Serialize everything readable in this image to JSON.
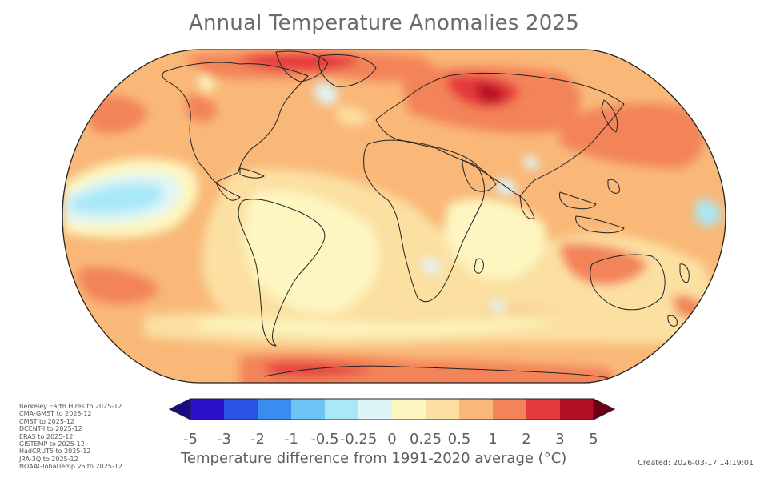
{
  "title": "Annual Temperature Anomalies 2025",
  "colorbar": {
    "label": "Temperature difference from 1991-2020 average (°C)",
    "ticks": [
      "-5",
      "-3",
      "-2",
      "-1",
      "-0.5",
      "-0.25",
      "0",
      "0.25",
      "0.5",
      "1",
      "2",
      "3",
      "5"
    ],
    "colors": [
      "#2a12c9",
      "#2b52e6",
      "#3a8cf0",
      "#6cc5f5",
      "#a9e8f6",
      "#def5f8",
      "#fdf6c0",
      "#fbe0a2",
      "#f9b878",
      "#f38358",
      "#e4393c",
      "#b30f24"
    ],
    "under_color": "#1a0a8a",
    "over_color": "#6e0014"
  },
  "sources": [
    "Berkeley Earth Hires to 2025-12",
    "CMA-GMST to 2025-12",
    "CMST to 2025-12",
    "DCENT-I to 2025-12",
    "ERA5 to 2025-12",
    "GISTEMP to 2025-12",
    "HadCRUT5 to 2025-12",
    "JRA-3Q to 2025-12",
    "NOAAGlobalTemp v6 to 2025-12"
  ],
  "created": "Created: 2026-03-17 14:19:01"
}
